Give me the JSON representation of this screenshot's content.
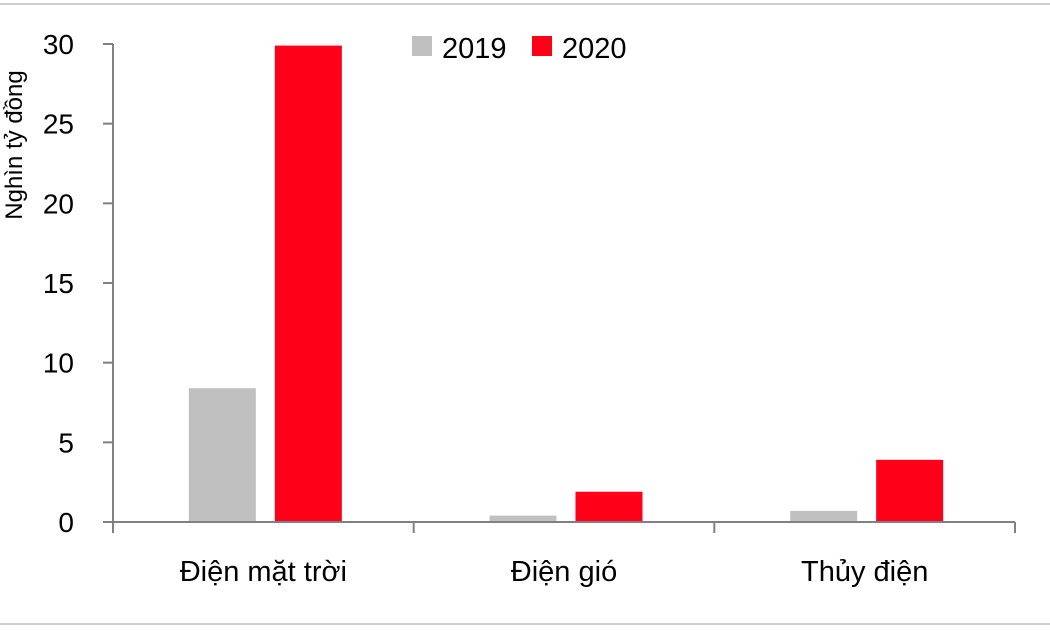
{
  "chart_data": {
    "type": "bar",
    "title": "",
    "xlabel": "",
    "ylabel": "Nghìn tỷ đồng",
    "ylim": [
      0,
      30
    ],
    "yticks": [
      0,
      5,
      10,
      15,
      20,
      25,
      30
    ],
    "categories": [
      "Điện mặt trời",
      "Điện gió",
      "Thủy điện"
    ],
    "series": [
      {
        "name": "2019",
        "color": "#c0c0c0",
        "values": [
          8.4,
          0.4,
          0.7
        ]
      },
      {
        "name": "2020",
        "color": "#ff0019",
        "values": [
          29.9,
          1.9,
          3.9
        ]
      }
    ],
    "legend_position": "top-center",
    "grid": false
  }
}
